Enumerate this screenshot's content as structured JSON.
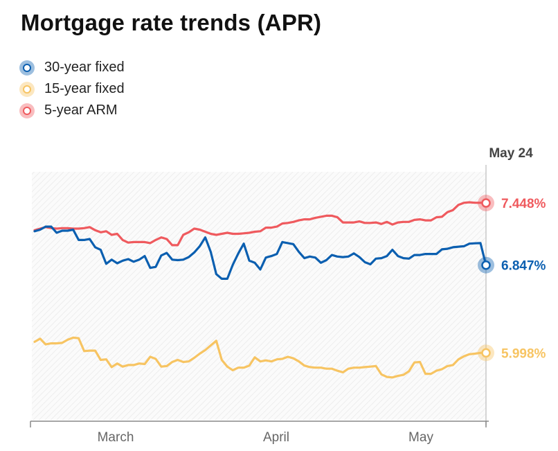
{
  "title": "Mortgage rate trends (APR)",
  "colors": {
    "series_30": "#0b5fb0",
    "series_15": "#f7c462",
    "series_arm": "#ef5a5e",
    "axis": "#888888",
    "label": "#444444"
  },
  "legend": [
    {
      "label": "30-year fixed",
      "color": "#0b5fb0"
    },
    {
      "label": "15-year fixed",
      "color": "#f7c462"
    },
    {
      "label": "5-year ARM",
      "color": "#ef5a5e"
    }
  ],
  "chart_data": {
    "type": "line",
    "title": "Mortgage rate trends (APR)",
    "xlabel": "",
    "ylabel": "",
    "x_ticks": [
      "March",
      "April",
      "May"
    ],
    "end_date_label": "May 24",
    "ylim": [
      5.35,
      7.75
    ],
    "grid": false,
    "series": [
      {
        "name": "5-year ARM",
        "color": "#ef5a5e",
        "end_label": "7.448%",
        "values": [
          7.185,
          7.2,
          7.215,
          7.205,
          7.2,
          7.205,
          7.205,
          7.2,
          7.2,
          7.205,
          7.215,
          7.185,
          7.165,
          7.175,
          7.14,
          7.15,
          7.09,
          7.065,
          7.07,
          7.07,
          7.07,
          7.06,
          7.09,
          7.115,
          7.1,
          7.04,
          7.04,
          7.14,
          7.165,
          7.2,
          7.19,
          7.17,
          7.15,
          7.14,
          7.15,
          7.16,
          7.15,
          7.15,
          7.155,
          7.16,
          7.17,
          7.175,
          7.21,
          7.21,
          7.22,
          7.25,
          7.255,
          7.265,
          7.28,
          7.29,
          7.29,
          7.305,
          7.315,
          7.325,
          7.325,
          7.31,
          7.26,
          7.26,
          7.26,
          7.27,
          7.255,
          7.255,
          7.26,
          7.245,
          7.265,
          7.24,
          7.26,
          7.265,
          7.265,
          7.285,
          7.29,
          7.28,
          7.28,
          7.31,
          7.315,
          7.36,
          7.38,
          7.43,
          7.45,
          7.455,
          7.45,
          7.45,
          7.448
        ]
      },
      {
        "name": "30-year fixed",
        "color": "#0b5fb0",
        "end_label": "6.847%",
        "values": [
          7.175,
          7.19,
          7.22,
          7.22,
          7.16,
          7.18,
          7.18,
          7.19,
          7.09,
          7.09,
          7.1,
          7.02,
          6.995,
          6.86,
          6.9,
          6.865,
          6.89,
          6.905,
          6.88,
          6.9,
          6.935,
          6.82,
          6.83,
          6.94,
          6.965,
          6.9,
          6.895,
          6.9,
          6.925,
          6.97,
          7.03,
          7.115,
          6.975,
          6.76,
          6.715,
          6.715,
          6.85,
          6.96,
          7.055,
          6.89,
          6.87,
          6.805,
          6.92,
          6.935,
          6.955,
          7.07,
          7.06,
          7.05,
          6.975,
          6.915,
          6.93,
          6.92,
          6.87,
          6.895,
          6.945,
          6.93,
          6.925,
          6.93,
          6.96,
          6.925,
          6.875,
          6.855,
          6.91,
          6.915,
          6.935,
          6.995,
          6.935,
          6.915,
          6.91,
          6.945,
          6.945,
          6.955,
          6.955,
          6.955,
          7.0,
          7.005,
          7.02,
          7.025,
          7.03,
          7.055,
          7.058,
          7.06,
          6.847
        ]
      },
      {
        "name": "15-year fixed",
        "color": "#f7c462",
        "end_label": "5.998%",
        "values": [
          6.105,
          6.135,
          6.08,
          6.09,
          6.09,
          6.095,
          6.125,
          6.145,
          6.14,
          6.015,
          6.02,
          6.02,
          5.93,
          5.935,
          5.86,
          5.895,
          5.865,
          5.88,
          5.88,
          5.895,
          5.89,
          5.96,
          5.94,
          5.865,
          5.87,
          5.91,
          5.93,
          5.91,
          5.915,
          5.95,
          5.99,
          6.025,
          6.07,
          6.115,
          5.93,
          5.865,
          5.83,
          5.855,
          5.855,
          5.875,
          5.955,
          5.915,
          5.925,
          5.915,
          5.935,
          5.94,
          5.96,
          5.945,
          5.915,
          5.875,
          5.86,
          5.855,
          5.855,
          5.845,
          5.845,
          5.825,
          5.81,
          5.845,
          5.855,
          5.855,
          5.86,
          5.865,
          5.87,
          5.79,
          5.765,
          5.76,
          5.775,
          5.785,
          5.82,
          5.905,
          5.91,
          5.795,
          5.795,
          5.825,
          5.84,
          5.87,
          5.88,
          5.935,
          5.965,
          5.985,
          5.99,
          5.998,
          5.998
        ]
      }
    ]
  }
}
